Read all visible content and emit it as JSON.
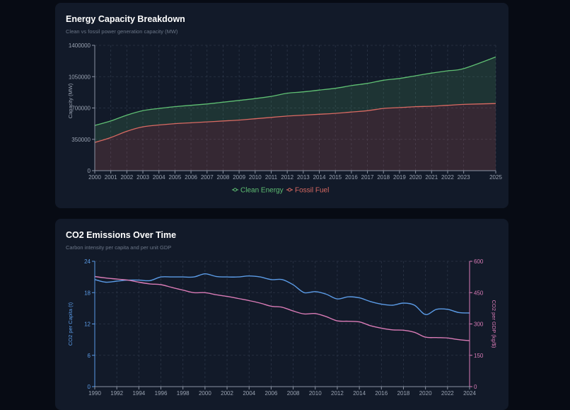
{
  "charts": {
    "capacity": {
      "title": "Energy Capacity Breakdown",
      "subtitle": "Clean vs fossil power generation capacity (MW)"
    },
    "emissions": {
      "title": "CO2 Emissions Over Time",
      "subtitle": "Carbon intensity per capita and per unit GDP"
    }
  },
  "colors": {
    "clean": "#5fbf73",
    "fossil": "#d96a62",
    "per_capita": "#5b9be6",
    "per_gdp": "#d97bb6"
  },
  "chart_data": [
    {
      "type": "area",
      "title": "Energy Capacity Breakdown",
      "subtitle": "Clean vs fossil power generation capacity (MW)",
      "xlabel": "",
      "ylabel": "Capacity (MW)",
      "categories": [
        "2000",
        "2001",
        "2002",
        "2003",
        "2004",
        "2005",
        "2006",
        "2007",
        "2008",
        "2009",
        "2010",
        "2011",
        "2012",
        "2013",
        "2014",
        "2015",
        "2016",
        "2017",
        "2018",
        "2019",
        "2020",
        "2021",
        "2022",
        "2023",
        "2025"
      ],
      "y_ticks": [
        0,
        350000,
        700000,
        1050000,
        1400000
      ],
      "ylim": [
        0,
        1400000
      ],
      "stacked": true,
      "grid": true,
      "legend": "bottom-center",
      "series": [
        {
          "name": "Fossil Fuel",
          "values": [
            315000,
            370000,
            440000,
            490000,
            510000,
            525000,
            535000,
            545000,
            555000,
            565000,
            580000,
            595000,
            610000,
            620000,
            630000,
            640000,
            655000,
            670000,
            695000,
            705000,
            715000,
            720000,
            730000,
            740000,
            750000
          ]
        },
        {
          "name": "Clean Energy",
          "values": [
            190000,
            185000,
            180000,
            180000,
            185000,
            190000,
            195000,
            200000,
            210000,
            220000,
            225000,
            235000,
            255000,
            260000,
            270000,
            280000,
            295000,
            305000,
            315000,
            325000,
            345000,
            370000,
            385000,
            400000,
            520000
          ]
        }
      ],
      "totals": [
        505000,
        555000,
        620000,
        670000,
        695000,
        715000,
        730000,
        745000,
        765000,
        785000,
        805000,
        830000,
        865000,
        880000,
        900000,
        920000,
        950000,
        975000,
        1010000,
        1030000,
        1060000,
        1090000,
        1115000,
        1140000,
        1270000
      ]
    },
    {
      "type": "line",
      "title": "CO2 Emissions Over Time",
      "subtitle": "Carbon intensity per capita and per unit GDP",
      "x": [
        1990,
        1991,
        1992,
        1993,
        1994,
        1995,
        1996,
        1997,
        1998,
        1999,
        2000,
        2001,
        2002,
        2003,
        2004,
        2005,
        2006,
        2007,
        2008,
        2009,
        2010,
        2011,
        2012,
        2013,
        2014,
        2015,
        2016,
        2017,
        2018,
        2019,
        2020,
        2021,
        2022,
        2023,
        2024
      ],
      "x_ticks": [
        1990,
        1992,
        1994,
        1996,
        1998,
        2000,
        2002,
        2004,
        2006,
        2008,
        2010,
        2012,
        2014,
        2016,
        2018,
        2020,
        2022,
        2024
      ],
      "xlim": [
        1990,
        2024
      ],
      "grid": true,
      "y_axes": [
        {
          "side": "left",
          "label": "CO2 per Capita (t)",
          "range": [
            0,
            24
          ],
          "ticks": [
            0,
            6,
            12,
            18,
            24
          ]
        },
        {
          "side": "right",
          "label": "CO2 per GDP (kg/$)",
          "range": [
            0,
            600
          ],
          "ticks": [
            0,
            150,
            300,
            450,
            600
          ]
        }
      ],
      "series": [
        {
          "axis": "left",
          "values": [
            20.5,
            20.0,
            20.2,
            20.4,
            20.4,
            20.3,
            21.0,
            21.0,
            21.0,
            21.0,
            21.6,
            21.1,
            21.0,
            21.0,
            21.2,
            21.0,
            20.5,
            20.5,
            19.5,
            18.0,
            18.2,
            17.7,
            16.8,
            17.2,
            17.0,
            16.3,
            15.8,
            15.6,
            16.0,
            15.6,
            13.8,
            14.8,
            14.8,
            14.2,
            14.1
          ]
        },
        {
          "axis": "right",
          "values": [
            527,
            520,
            515,
            510,
            500,
            492,
            488,
            475,
            462,
            450,
            450,
            440,
            432,
            422,
            412,
            400,
            385,
            380,
            362,
            348,
            350,
            335,
            315,
            313,
            310,
            292,
            280,
            272,
            270,
            260,
            237,
            235,
            233,
            225,
            220
          ]
        }
      ]
    }
  ]
}
